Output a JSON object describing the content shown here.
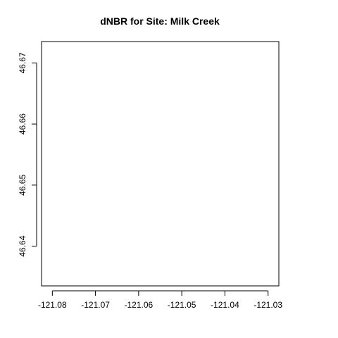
{
  "chart_data": {
    "type": "scatter",
    "title": "dNBR for Site: Milk Creek",
    "xlabel": "",
    "ylabel": "",
    "xlim": [
      -121.0825,
      -121.0275
    ],
    "ylim": [
      46.6335,
      46.6735
    ],
    "x_ticks": [
      -121.08,
      -121.07,
      -121.06,
      -121.05,
      -121.04,
      -121.03
    ],
    "x_tick_labels": [
      "-121.08",
      "-121.07",
      "-121.06",
      "-121.05",
      "-121.04",
      "-121.03"
    ],
    "y_ticks": [
      46.64,
      46.65,
      46.66,
      46.67
    ],
    "y_tick_labels": [
      "46.64",
      "46.65",
      "46.66",
      "46.67"
    ],
    "points": [],
    "grid": false,
    "legend": "none",
    "colors": {
      "axis": "#000000",
      "background": "#ffffff"
    }
  }
}
